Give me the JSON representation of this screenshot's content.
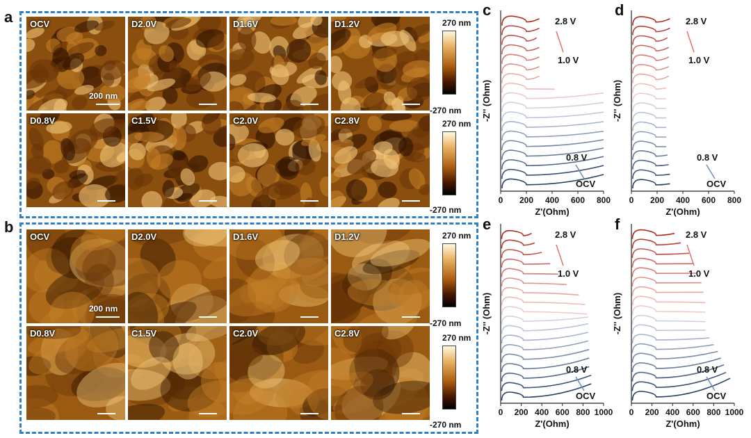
{
  "panels": {
    "a": {
      "label": "a",
      "tiles": [
        "OCV",
        "D2.0V",
        "D1.6V",
        "D1.2V",
        "D0.8V",
        "C1.5V",
        "C2.0V",
        "C2.8V"
      ],
      "scale": "200 nm",
      "colorbar": {
        "max": "270 nm",
        "min": "-270 nm"
      }
    },
    "b": {
      "label": "b",
      "tiles": [
        "OCV",
        "D2.0V",
        "D1.6V",
        "D1.2V",
        "D0.8V",
        "C1.5V",
        "C2.0V",
        "C2.8V"
      ],
      "scale": "200 nm",
      "colorbar": {
        "max": "270 nm",
        "min": "-270 nm"
      }
    }
  },
  "chart_data": [
    {
      "panel": "c",
      "type": "line",
      "xlabel": "Z'(Ohm)",
      "ylabel": "-Z'' (Ohm)",
      "xlim": [
        0,
        800
      ],
      "xticks": [
        0,
        200,
        400,
        600,
        800
      ],
      "annotations": {
        "top": [
          "2.8 V",
          "1.0 V"
        ],
        "bottom": [
          "0.8 V",
          "OCV"
        ]
      },
      "n_curves": 18,
      "semicircle_diameter": 200,
      "tail_end_x": [
        300,
        300,
        280,
        300,
        300,
        300,
        300,
        420,
        800,
        800,
        800,
        800,
        800,
        800,
        800,
        800,
        800,
        800
      ],
      "tail_end_dy": [
        60,
        60,
        60,
        60,
        60,
        60,
        60,
        30,
        80,
        80,
        80,
        80,
        80,
        90,
        100,
        110,
        115,
        120
      ]
    },
    {
      "panel": "d",
      "type": "line",
      "xlabel": "Z'(Ohm)",
      "ylabel": "-Z'' (Ohm)",
      "xlim": [
        0,
        800
      ],
      "xticks": [
        0,
        200,
        400,
        600,
        800
      ],
      "annotations": {
        "top": [
          "2.8 V",
          "1.0 V"
        ],
        "bottom": [
          "0.8 V",
          "OCV"
        ]
      },
      "n_curves": 18,
      "semicircle_diameter": 190,
      "tail_end_x": [
        300,
        300,
        280,
        290,
        290,
        290,
        290,
        270,
        270,
        270,
        270,
        270,
        270,
        270,
        280,
        290,
        300,
        300
      ],
      "tail_end_dy": [
        60,
        60,
        60,
        60,
        60,
        60,
        60,
        40,
        30,
        30,
        30,
        30,
        30,
        30,
        40,
        40,
        40,
        40
      ]
    },
    {
      "panel": "e",
      "type": "line",
      "xlabel": "Z'(Ohm)",
      "ylabel": "-Z'' (Ohm)",
      "xlim": [
        0,
        1000
      ],
      "xticks": [
        0,
        200,
        400,
        600,
        800,
        1000
      ],
      "annotations": {
        "top": [
          "2.8 V",
          "1.0 V"
        ],
        "bottom": [
          "0.8 V",
          "OCV"
        ]
      },
      "n_curves": 18,
      "semicircle_diameter": 220,
      "tail_end_x": [
        300,
        330,
        400,
        480,
        560,
        640,
        760,
        820,
        840,
        850,
        850,
        850,
        850,
        860,
        860,
        860,
        880,
        880
      ],
      "tail_end_dy": [
        60,
        60,
        60,
        40,
        30,
        20,
        10,
        10,
        10,
        80,
        110,
        120,
        130,
        140,
        150,
        160,
        170,
        180
      ]
    },
    {
      "panel": "f",
      "type": "line",
      "xlabel": "Z'(Ohm)",
      "ylabel": "-Z'' (Ohm)",
      "xlim": [
        0,
        1000
      ],
      "xticks": [
        0,
        200,
        400,
        600,
        800,
        1000
      ],
      "annotations": {
        "top": [
          "2.8 V",
          "1.0 V"
        ],
        "bottom": [
          "0.8 V",
          "OCV"
        ]
      },
      "n_curves": 18,
      "semicircle_diameter": 240,
      "tail_end_x": [
        420,
        480,
        560,
        600,
        640,
        680,
        700,
        720,
        720,
        720,
        720,
        760,
        800,
        840,
        870,
        900,
        920,
        960
      ],
      "tail_end_dy": [
        60,
        60,
        50,
        40,
        40,
        40,
        40,
        30,
        30,
        30,
        40,
        60,
        90,
        120,
        150,
        180,
        200,
        240
      ]
    }
  ],
  "colors": {
    "frame": "#2f7fc1",
    "red_top": "#b22a1c",
    "blue_bottom": "#2a3f66"
  }
}
